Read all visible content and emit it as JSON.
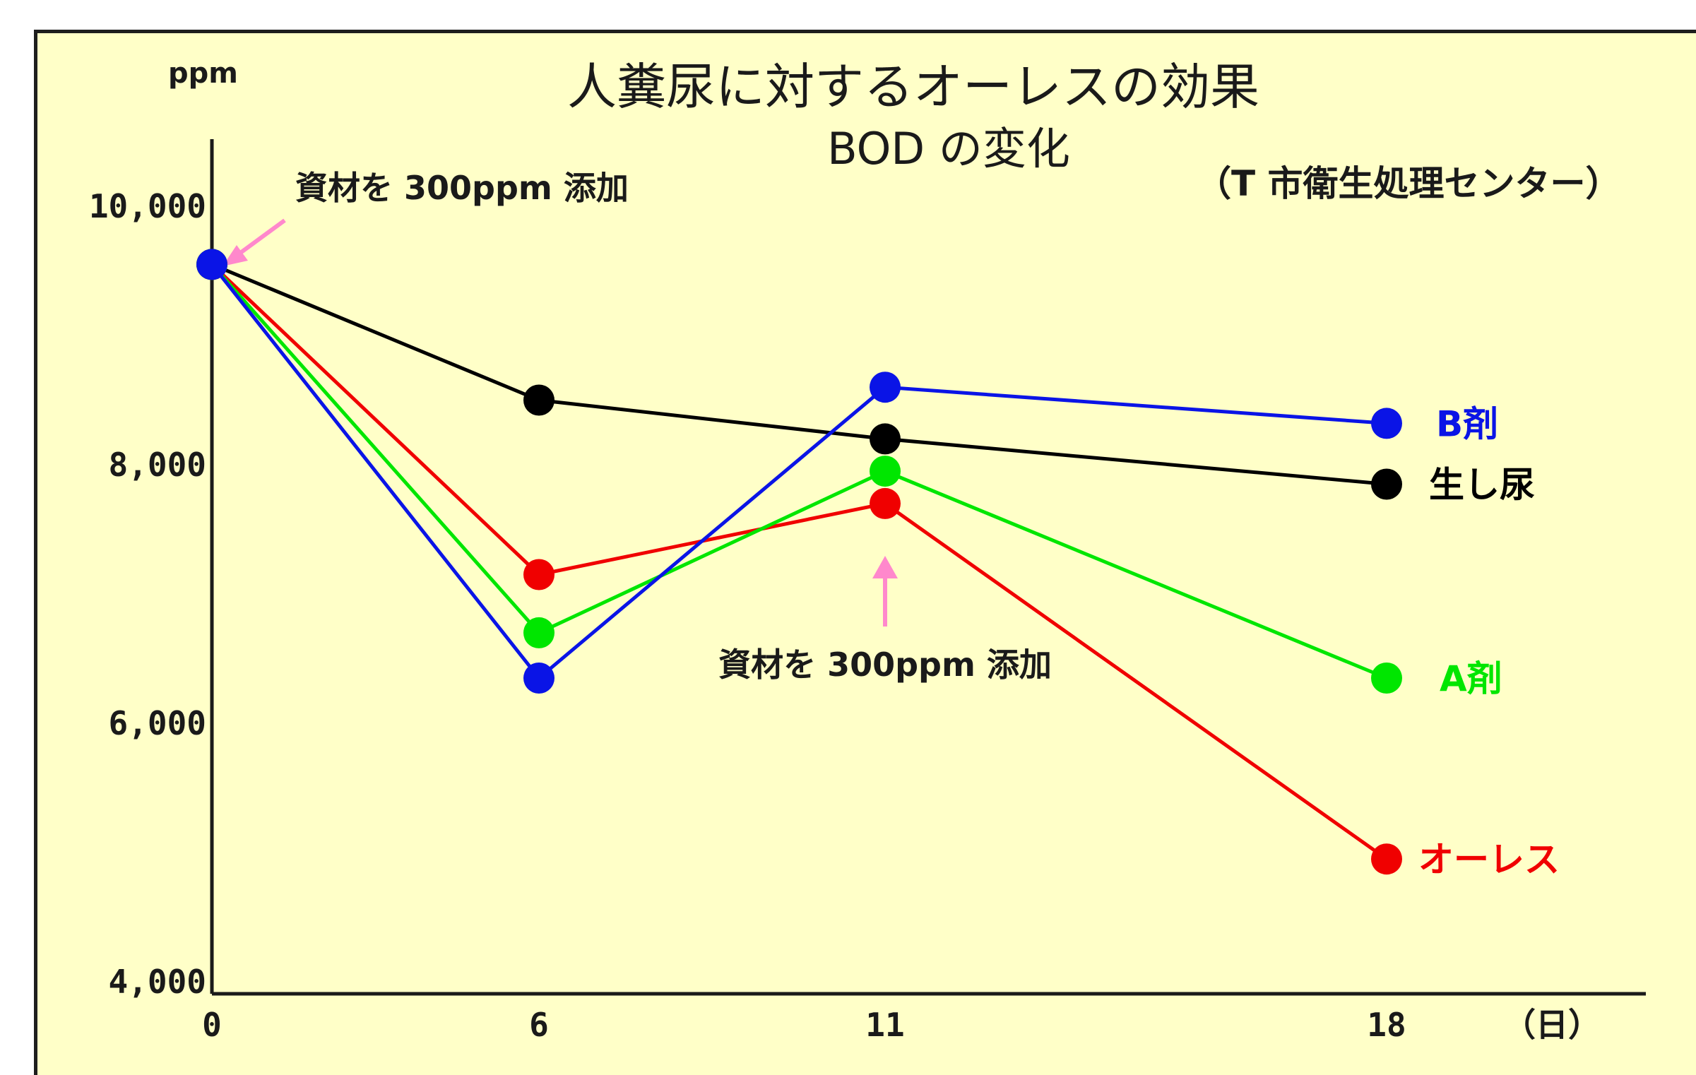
{
  "chart_data": {
    "type": "line",
    "title": "人糞尿に対するオーレスの効果",
    "subtitle": "BOD の変化",
    "source_note": "（T 市衛生処理センター）",
    "ylabel": "ppm",
    "xunit": "（日）",
    "x": [
      0,
      6,
      11,
      18
    ],
    "xticks": [
      "0",
      "6",
      "11",
      "18"
    ],
    "ylim": [
      4000,
      10500
    ],
    "yticks": [
      4000,
      6000,
      8000,
      10000
    ],
    "ytick_labels": [
      "4,000",
      "6,000",
      "8,000",
      "10,000"
    ],
    "series": [
      {
        "name": "B剤",
        "color": "#0a14e6",
        "values": [
          9550,
          6350,
          8600,
          8320
        ]
      },
      {
        "name": "生し尿",
        "color": "#000000",
        "values": [
          9550,
          8500,
          8200,
          7850
        ]
      },
      {
        "name": "A剤",
        "color": "#00e600",
        "values": [
          9550,
          6700,
          7950,
          6350
        ]
      },
      {
        "name": "オーレス",
        "color": "#f00000",
        "values": [
          9550,
          7150,
          7700,
          4950
        ]
      }
    ],
    "annotations": [
      {
        "text": "資材を 300ppm 添加",
        "x": 0
      },
      {
        "text": "資材を 300ppm 添加",
        "x": 11
      }
    ],
    "arrow_color": "#ff88cc"
  }
}
